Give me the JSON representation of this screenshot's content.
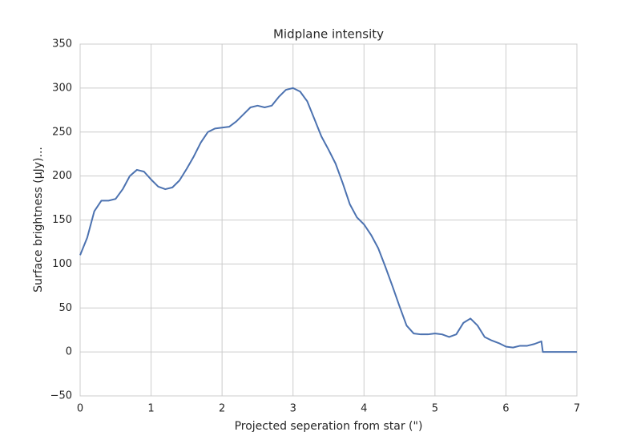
{
  "chart_data": {
    "type": "line",
    "title": "Midplane intensity",
    "xlabel": "Projected seperation from star (\")",
    "ylabel": "Surface brightness (μJy)...",
    "x": [
      0,
      0.1,
      0.2,
      0.3,
      0.4,
      0.5,
      0.6,
      0.7,
      0.8,
      0.9,
      1.0,
      1.1,
      1.2,
      1.3,
      1.4,
      1.5,
      1.6,
      1.7,
      1.8,
      1.9,
      2.0,
      2.1,
      2.2,
      2.3,
      2.4,
      2.5,
      2.6,
      2.7,
      2.8,
      2.9,
      3.0,
      3.1,
      3.2,
      3.3,
      3.4,
      3.5,
      3.6,
      3.7,
      3.8,
      3.9,
      4.0,
      4.1,
      4.2,
      4.3,
      4.4,
      4.5,
      4.6,
      4.7,
      4.8,
      4.9,
      5.0,
      5.1,
      5.2,
      5.3,
      5.4,
      5.5,
      5.6,
      5.7,
      5.8,
      5.9,
      6.0,
      6.1,
      6.2,
      6.3,
      6.4,
      6.5,
      6.52,
      7.0
    ],
    "values": [
      110,
      130,
      160,
      172,
      172,
      174,
      185,
      200,
      207,
      205,
      196,
      188,
      185,
      187,
      195,
      208,
      222,
      238,
      250,
      254,
      255,
      256,
      262,
      270,
      278,
      280,
      278,
      280,
      290,
      298,
      300,
      296,
      285,
      265,
      245,
      230,
      214,
      192,
      168,
      153,
      145,
      133,
      118,
      97,
      75,
      52,
      30,
      21,
      20,
      20,
      21,
      20,
      17,
      20,
      33,
      38,
      30,
      17,
      13,
      10,
      6,
      5,
      7,
      7,
      9,
      12,
      0,
      0
    ],
    "color": "#4c72b0",
    "xlim": [
      0,
      7
    ],
    "xticks": [
      0,
      1,
      2,
      3,
      4,
      5,
      6,
      7
    ],
    "ylim": [
      -50,
      350
    ],
    "yticks": [
      {
        "value": -50,
        "label": "−50"
      },
      0,
      50,
      100,
      150,
      200,
      250,
      300,
      350
    ],
    "grid": true
  }
}
